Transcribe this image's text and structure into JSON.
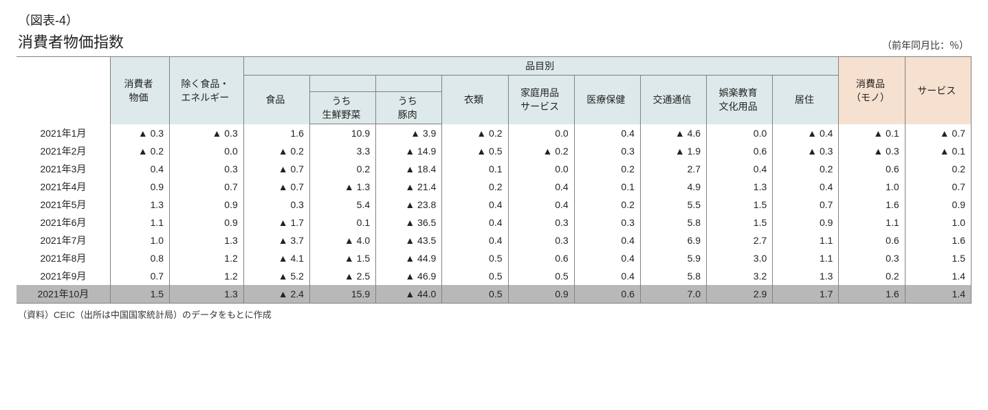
{
  "caption": "（図表-4）",
  "title": "消費者物価指数",
  "unit": "（前年同月比：％）",
  "source": "（資料）CEIC（出所は中国国家統計局）のデータをもとに作成",
  "colors": {
    "header_bg": "#dde9ea",
    "header_orange_bg": "#f6e0cf",
    "highlight_row_bg": "#b8b8b8",
    "border": "#808080",
    "page_bg": "#ffffff"
  },
  "neg_marker": "▲",
  "columns": {
    "month": "",
    "cpi": "消費者\n物価",
    "ex_food_energy": "除く食品・\nエネルギー",
    "group_label": "品目別",
    "food": "食品",
    "veg": "うち\n生鮮野菜",
    "pork": "うち\n豚肉",
    "clothing": "衣類",
    "household": "家庭用品\nサービス",
    "medical": "医療保健",
    "transport": "交通通信",
    "recreation": "娯楽教育\n文化用品",
    "housing": "居住",
    "goods": "消費品\n（モノ）",
    "services": "サービス"
  },
  "rows": [
    {
      "month": "2021年1月",
      "cpi": -0.3,
      "ex": -0.3,
      "food": 1.6,
      "veg": 10.9,
      "pork": -3.9,
      "cloth": -0.2,
      "hh": 0.0,
      "med": 0.4,
      "trans": -4.6,
      "rec": 0.0,
      "house": -0.4,
      "goods": -0.1,
      "serv": -0.7,
      "hl": false
    },
    {
      "month": "2021年2月",
      "cpi": -0.2,
      "ex": 0.0,
      "food": -0.2,
      "veg": 3.3,
      "pork": -14.9,
      "cloth": -0.5,
      "hh": -0.2,
      "med": 0.3,
      "trans": -1.9,
      "rec": 0.6,
      "house": -0.3,
      "goods": -0.3,
      "serv": -0.1,
      "hl": false
    },
    {
      "month": "2021年3月",
      "cpi": 0.4,
      "ex": 0.3,
      "food": -0.7,
      "veg": 0.2,
      "pork": -18.4,
      "cloth": 0.1,
      "hh": 0.0,
      "med": 0.2,
      "trans": 2.7,
      "rec": 0.4,
      "house": 0.2,
      "goods": 0.6,
      "serv": 0.2,
      "hl": false
    },
    {
      "month": "2021年4月",
      "cpi": 0.9,
      "ex": 0.7,
      "food": -0.7,
      "veg": -1.3,
      "pork": -21.4,
      "cloth": 0.2,
      "hh": 0.4,
      "med": 0.1,
      "trans": 4.9,
      "rec": 1.3,
      "house": 0.4,
      "goods": 1.0,
      "serv": 0.7,
      "hl": false
    },
    {
      "month": "2021年5月",
      "cpi": 1.3,
      "ex": 0.9,
      "food": 0.3,
      "veg": 5.4,
      "pork": -23.8,
      "cloth": 0.4,
      "hh": 0.4,
      "med": 0.2,
      "trans": 5.5,
      "rec": 1.5,
      "house": 0.7,
      "goods": 1.6,
      "serv": 0.9,
      "hl": false
    },
    {
      "month": "2021年6月",
      "cpi": 1.1,
      "ex": 0.9,
      "food": -1.7,
      "veg": 0.1,
      "pork": -36.5,
      "cloth": 0.4,
      "hh": 0.3,
      "med": 0.3,
      "trans": 5.8,
      "rec": 1.5,
      "house": 0.9,
      "goods": 1.1,
      "serv": 1.0,
      "hl": false
    },
    {
      "month": "2021年7月",
      "cpi": 1.0,
      "ex": 1.3,
      "food": -3.7,
      "veg": -4.0,
      "pork": -43.5,
      "cloth": 0.4,
      "hh": 0.3,
      "med": 0.4,
      "trans": 6.9,
      "rec": 2.7,
      "house": 1.1,
      "goods": 0.6,
      "serv": 1.6,
      "hl": false
    },
    {
      "month": "2021年8月",
      "cpi": 0.8,
      "ex": 1.2,
      "food": -4.1,
      "veg": -1.5,
      "pork": -44.9,
      "cloth": 0.5,
      "hh": 0.6,
      "med": 0.4,
      "trans": 5.9,
      "rec": 3.0,
      "house": 1.1,
      "goods": 0.3,
      "serv": 1.5,
      "hl": false
    },
    {
      "month": "2021年9月",
      "cpi": 0.7,
      "ex": 1.2,
      "food": -5.2,
      "veg": -2.5,
      "pork": -46.9,
      "cloth": 0.5,
      "hh": 0.5,
      "med": 0.4,
      "trans": 5.8,
      "rec": 3.2,
      "house": 1.3,
      "goods": 0.2,
      "serv": 1.4,
      "hl": false
    },
    {
      "month": "2021年10月",
      "cpi": 1.5,
      "ex": 1.3,
      "food": -2.4,
      "veg": 15.9,
      "pork": -44.0,
      "cloth": 0.5,
      "hh": 0.9,
      "med": 0.6,
      "trans": 7.0,
      "rec": 2.9,
      "house": 1.7,
      "goods": 1.6,
      "serv": 1.4,
      "hl": true
    }
  ],
  "col_widths_pct": {
    "month": 9.5,
    "cpi": 6.0,
    "ex": 7.5,
    "food": 6.7,
    "veg": 6.7,
    "pork": 6.7,
    "cloth": 6.7,
    "hh": 6.7,
    "med": 6.7,
    "trans": 6.7,
    "rec": 6.7,
    "house": 6.7,
    "goods": 6.7,
    "serv": 6.7
  }
}
